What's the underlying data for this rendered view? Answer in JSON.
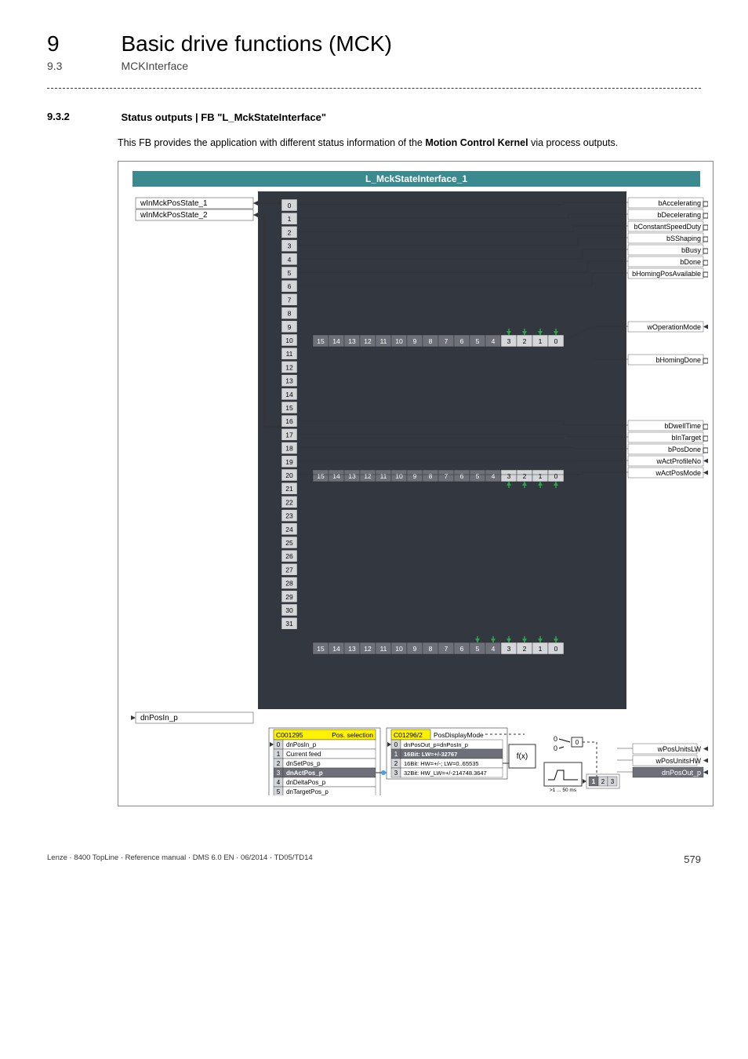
{
  "header": {
    "chapter_num": "9",
    "chapter_title": "Basic drive functions (MCK)",
    "sub_num": "9.3",
    "sub_title": "MCKInterface"
  },
  "section": {
    "num": "9.3.2",
    "title": "Status outputs | FB \"L_MckStateInterface\"",
    "body_pre": "This FB  provides the application with different status information of the ",
    "body_bold": "Motion Control Kernel",
    "body_post": " via process outputs."
  },
  "diagram": {
    "fb_title": "L_MckStateInterface_1",
    "inputs_top": [
      "wInMckPosState_1",
      "wInMckPosState_2"
    ],
    "input_bottom": "dnPosIn_p",
    "left_bits": [
      "0",
      "1",
      "2",
      "3",
      "4",
      "5",
      "6",
      "7",
      "8",
      "9",
      "10",
      "11",
      "12",
      "13",
      "14",
      "15",
      "16",
      "17",
      "18",
      "19",
      "20",
      "21",
      "22",
      "23",
      "24",
      "25",
      "26",
      "27",
      "28",
      "29",
      "30",
      "31"
    ],
    "bit_row": [
      "15",
      "14",
      "13",
      "12",
      "11",
      "10",
      "9",
      "8",
      "7",
      "6",
      "5",
      "4",
      "3",
      "2",
      "1",
      "0"
    ],
    "outputs_group1": [
      "bAccelerating",
      "bDecelerating",
      "bConstantSpeedDuty",
      "bSShaping",
      "bBusy",
      "bDone",
      "bHomingPosAvailable"
    ],
    "outputs_mid1": "wOperationMode",
    "outputs_mid2": "bHomingDone",
    "outputs_group2": [
      "bDwellTime",
      "bInTarget",
      "bPosDone",
      "wActProfileNo",
      "wActPosMode"
    ],
    "pos_sel": {
      "code": "C001295",
      "label": "Pos. selection",
      "items": [
        {
          "idx": "0",
          "txt": "dnPosIn_p"
        },
        {
          "idx": "1",
          "txt": "Current feed"
        },
        {
          "idx": "2",
          "txt": "dnSetPos_p"
        },
        {
          "idx": "3",
          "txt": "dnActPos_p"
        },
        {
          "idx": "4",
          "txt": "dnDeltaPos_p"
        },
        {
          "idx": "5",
          "txt": "dnTargetPos_p"
        }
      ],
      "highlight_idx": "3"
    },
    "pos_disp": {
      "code": "C01296/2",
      "label": "PosDisplayMode",
      "items": [
        {
          "idx": "0",
          "txt": "dnPosOut_p=dnPosIn_p"
        },
        {
          "idx": "1",
          "txt": "16Bit: LW=+/-32767"
        },
        {
          "idx": "2",
          "txt": "16Bit: HW=+/-; LW=0..65535"
        },
        {
          "idx": "3",
          "txt": "32Bit: HW_LW=+/-214748.3647"
        }
      ],
      "highlight_idx": "1"
    },
    "fx": "f(x)",
    "timer": ">1 ... 50 ms",
    "tabbox": [
      "1",
      "2",
      "3"
    ],
    "zero_box": "0",
    "zero_labels": [
      "0",
      "0"
    ],
    "outputs_bottom": [
      "wPosUnitsLW",
      "wPosUnitsHW",
      "dnPosOut_p"
    ],
    "colors": {
      "teal": "#3a8a8f",
      "dark": "#333740",
      "grey_box": "#6d7078",
      "light_box": "#d4d6d9",
      "yellow": "#fff200",
      "green_arrow": "#2aa54a",
      "blue_node": "#4aa0d8"
    }
  },
  "footer": {
    "left": "Lenze · 8400 TopLine · Reference manual · DMS 6.0 EN · 06/2014 · TD05/TD14",
    "page": "579"
  }
}
